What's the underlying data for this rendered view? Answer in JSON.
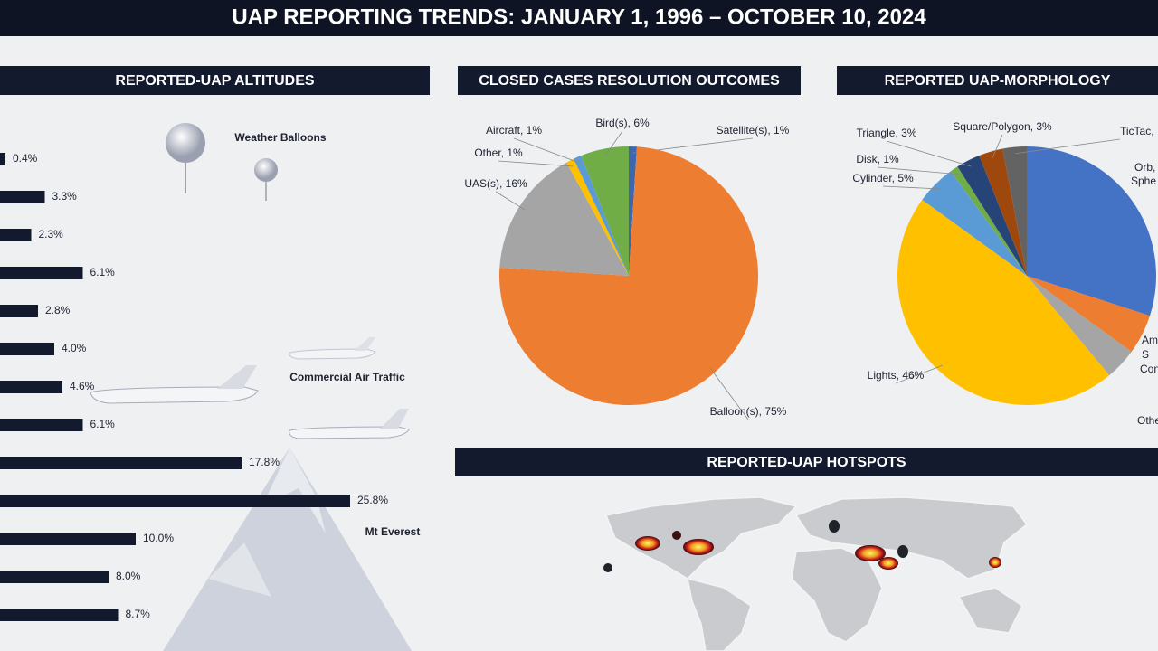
{
  "title": "UAP REPORTING TRENDS: JANUARY 1, 1996 – OCTOBER 10, 2024",
  "chart_data": [
    {
      "type": "bar",
      "title": "REPORTED-UAP ALTITUDES",
      "color": "#141a2e",
      "values": [
        0.4,
        3.3,
        2.3,
        6.1,
        2.8,
        4.0,
        4.6,
        6.1,
        17.8,
        25.8,
        10.0,
        8.0,
        8.7
      ],
      "value_labels": [
        "0.4%",
        "3.3%",
        "2.3%",
        "6.1%",
        "2.8%",
        "4.0%",
        "4.6%",
        "6.1%",
        "17.8%",
        "25.8%",
        "10.0%",
        "8.0%",
        "8.7%"
      ],
      "annotations": [
        "Weather Balloons",
        "Commercial Air Traffic",
        "Mt Everest"
      ]
    },
    {
      "type": "pie",
      "title": "CLOSED CASES RESOLUTION OUTCOMES",
      "values": [
        1,
        75,
        16,
        1,
        1,
        6
      ],
      "value_labels": [
        "Satellite(s), 1%",
        "Balloon(s), 75%",
        "UAS(s), 16%",
        "Other, 1%",
        "Aircraft, 1%",
        "Bird(s), 6%"
      ],
      "colors": [
        "#3e66b0",
        "#ed7d31",
        "#a5a5a5",
        "#ffc000",
        "#5b9bd5",
        "#70ad47"
      ]
    },
    {
      "type": "pie",
      "title": "REPORTED UAP-MORPHOLOGY",
      "values": [
        30,
        5,
        4,
        46,
        5,
        1,
        3,
        3,
        3
      ],
      "value_labels": [
        null,
        null,
        null,
        "Lights, 46%",
        "Cylinder, 5%",
        "Disk, 1%",
        "Triangle, 3%",
        "Square/Polygon, 3%",
        "TicTac,"
      ],
      "colors": [
        "#4472c4",
        "#ed7d31",
        "#a5a5a5",
        "#ffc000",
        "#5b9bd5",
        "#70ad47",
        "#264478",
        "#9e480e",
        "#636363"
      ],
      "annotations": [
        "Orb,",
        "Sphe",
        "Am",
        "S",
        "Con",
        "Othe"
      ]
    },
    {
      "type": "map",
      "title": "REPORTED-UAP HOTSPOTS"
    }
  ]
}
